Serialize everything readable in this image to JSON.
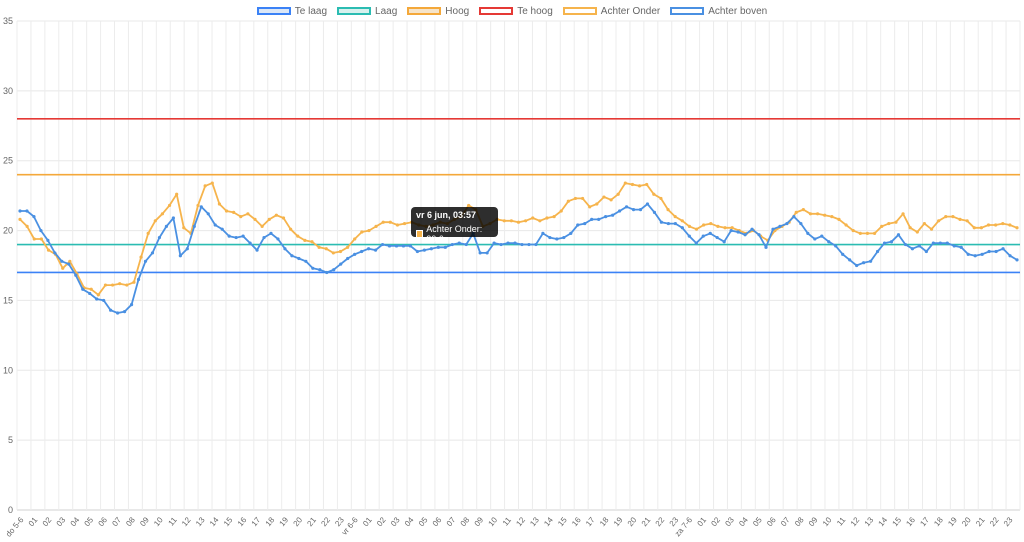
{
  "legend": {
    "items": [
      {
        "label": "Te laag",
        "color": "#3b82f6",
        "fill": "#dbe7f7"
      },
      {
        "label": "Laag",
        "color": "#2bbcb2",
        "fill": "#d7f1ee"
      },
      {
        "label": "Hoog",
        "color": "#f4a83a",
        "fill": "#f6e4c9"
      },
      {
        "label": "Te hoog",
        "color": "#e53935",
        "fill": "#ffffff"
      },
      {
        "label": "Achter Onder",
        "color": "#f6b44c",
        "fill": "#ffffff"
      },
      {
        "label": "Achter boven",
        "color": "#4a90e2",
        "fill": "#ffffff"
      }
    ]
  },
  "tooltip": {
    "title": "vr 6 jun, 03:57",
    "label": "Achter Onder: 20.6",
    "color": "#f6b44c"
  },
  "chart_data": {
    "type": "line",
    "ylim": [
      0,
      35
    ],
    "yticks": [
      0,
      5,
      10,
      15,
      20,
      25,
      30,
      35
    ],
    "grid": true,
    "legend_position": "top",
    "xlabels": [
      "do 5-6",
      "01",
      "02",
      "03",
      "04",
      "05",
      "06",
      "07",
      "08",
      "09",
      "10",
      "11",
      "12",
      "13",
      "14",
      "15",
      "16",
      "17",
      "18",
      "19",
      "20",
      "21",
      "22",
      "23",
      "vr 6-6",
      "01",
      "02",
      "03",
      "04",
      "05",
      "06",
      "07",
      "08",
      "09",
      "10",
      "11",
      "12",
      "13",
      "14",
      "15",
      "16",
      "17",
      "18",
      "19",
      "20",
      "21",
      "22",
      "23",
      "za 7-6",
      "01",
      "02",
      "03",
      "04",
      "05",
      "06",
      "07",
      "08",
      "09",
      "10",
      "11",
      "12",
      "13",
      "14",
      "15",
      "16",
      "17",
      "18",
      "19",
      "20",
      "21",
      "22",
      "23"
    ],
    "thresholds": [
      {
        "name": "Te laag",
        "value": 17,
        "color": "#3b82f6"
      },
      {
        "name": "Laag",
        "value": 19,
        "color": "#2bbcb2"
      },
      {
        "name": "Hoog",
        "value": 24,
        "color": "#f4a83a"
      },
      {
        "name": "Te hoog",
        "value": 28,
        "color": "#e53935"
      }
    ],
    "series": [
      {
        "name": "Achter Onder",
        "color": "#f6b44c",
        "values": [
          20.8,
          20.3,
          19.4,
          19.4,
          18.6,
          18.3,
          17.3,
          17.8,
          16.9,
          15.9,
          15.8,
          15.4,
          16.1,
          16.1,
          16.2,
          16.1,
          16.3,
          18.1,
          19.8,
          20.7,
          21.2,
          21.8,
          22.6,
          20.2,
          19.8,
          21.8,
          23.2,
          23.4,
          21.9,
          21.4,
          21.3,
          21.0,
          21.2,
          20.8,
          20.3,
          20.8,
          21.1,
          20.9,
          20.1,
          19.6,
          19.3,
          19.2,
          18.8,
          18.7,
          18.4,
          18.5,
          18.8,
          19.4,
          19.9,
          20.0,
          20.3,
          20.6,
          20.6,
          20.4,
          20.5,
          20.6,
          20.4,
          20.3,
          20.4,
          20.6,
          20.5,
          20.8,
          21.0,
          21.8,
          21.5,
          20.3,
          20.5,
          20.8,
          20.7,
          20.7,
          20.6,
          20.7,
          20.9,
          20.7,
          20.9,
          21.0,
          21.4,
          22.1,
          22.3,
          22.3,
          21.7,
          21.9,
          22.4,
          22.2,
          22.6,
          23.4,
          23.3,
          23.2,
          23.3,
          22.6,
          22.3,
          21.5,
          21.0,
          20.7,
          20.3,
          20.1,
          20.4,
          20.5,
          20.3,
          20.2,
          20.2,
          20.0,
          19.8,
          20.0,
          19.6,
          19.3,
          20.0,
          20.3,
          20.6,
          21.3,
          21.5,
          21.2,
          21.2,
          21.1,
          21.0,
          20.8,
          20.4,
          20.0,
          19.8,
          19.8,
          19.8,
          20.3,
          20.5,
          20.6,
          21.2,
          20.2,
          19.9,
          20.5,
          20.1,
          20.7,
          21.0,
          21.0,
          20.8,
          20.7,
          20.2,
          20.2,
          20.4,
          20.4,
          20.5,
          20.4,
          20.2
        ]
      },
      {
        "name": "Achter boven",
        "color": "#4a90e2",
        "values": [
          21.4,
          21.4,
          21.0,
          20.0,
          19.3,
          18.4,
          17.8,
          17.6,
          16.8,
          15.8,
          15.5,
          15.1,
          15.0,
          14.3,
          14.1,
          14.2,
          14.7,
          16.5,
          17.8,
          18.4,
          19.5,
          20.3,
          20.9,
          18.2,
          18.7,
          20.3,
          21.7,
          21.2,
          20.4,
          20.1,
          19.6,
          19.5,
          19.6,
          19.1,
          18.6,
          19.5,
          19.8,
          19.4,
          18.7,
          18.2,
          18.0,
          17.8,
          17.3,
          17.2,
          17.0,
          17.2,
          17.6,
          18.0,
          18.3,
          18.5,
          18.7,
          18.6,
          19.0,
          18.9,
          18.9,
          18.9,
          18.9,
          18.5,
          18.6,
          18.7,
          18.8,
          18.8,
          19.0,
          19.1,
          19.0,
          19.8,
          18.4,
          18.4,
          19.1,
          19.0,
          19.1,
          19.1,
          19.0,
          19.0,
          19.0,
          19.8,
          19.5,
          19.4,
          19.5,
          19.8,
          20.4,
          20.5,
          20.8,
          20.8,
          21.0,
          21.1,
          21.4,
          21.7,
          21.5,
          21.5,
          21.9,
          21.3,
          20.6,
          20.5,
          20.5,
          20.2,
          19.6,
          19.1,
          19.6,
          19.8,
          19.5,
          19.2,
          20.0,
          19.9,
          19.7,
          20.1,
          19.7,
          18.8,
          20.1,
          20.3,
          20.5,
          21.0,
          20.5,
          19.8,
          19.4,
          19.6,
          19.2,
          18.9,
          18.3,
          17.9,
          17.5,
          17.7,
          17.8,
          18.5,
          19.1,
          19.2,
          19.7,
          19.0,
          18.7,
          18.9,
          18.5,
          19.1,
          19.1,
          19.1,
          18.9,
          18.8,
          18.3,
          18.2,
          18.3,
          18.5,
          18.5,
          18.7,
          18.2,
          17.9
        ]
      }
    ]
  }
}
